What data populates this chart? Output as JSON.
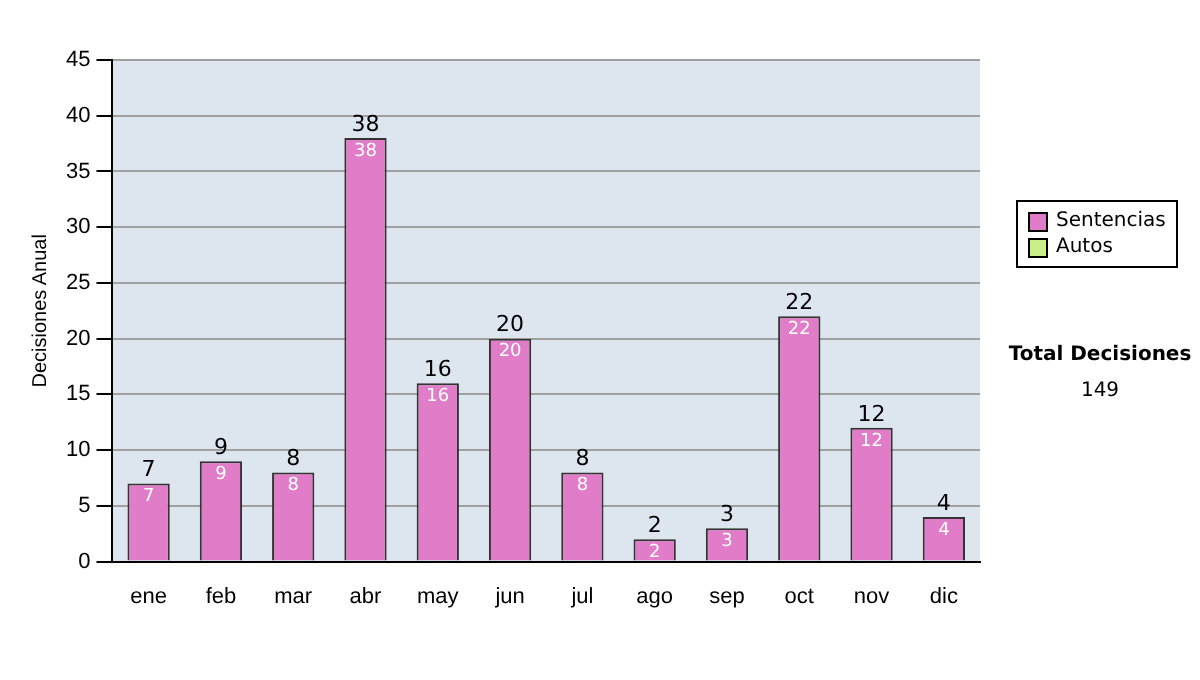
{
  "chart_data": {
    "type": "bar",
    "ylabel": "Decisiones Anual",
    "categories": [
      "ene",
      "feb",
      "mar",
      "abr",
      "may",
      "jun",
      "jul",
      "ago",
      "sep",
      "oct",
      "nov",
      "dic"
    ],
    "series": [
      {
        "name": "Sentencias",
        "color": "#e07cc8",
        "values": [
          7,
          9,
          8,
          38,
          16,
          20,
          8,
          2,
          3,
          22,
          12,
          4
        ],
        "value_labels": [
          "7",
          "9",
          "8",
          "38",
          "16",
          "20",
          "8",
          "2",
          "3",
          "22",
          "12",
          "4"
        ]
      },
      {
        "name": "Autos",
        "color": "#ccee88",
        "values": [
          0,
          0,
          0,
          0,
          0,
          0,
          0,
          0,
          0,
          0,
          0,
          0
        ]
      }
    ],
    "stacked": true,
    "totals": [
      "7",
      "9",
      "8",
      "38",
      "16",
      "20",
      "8",
      "2",
      "3",
      "22",
      "12",
      "4"
    ],
    "ylim": [
      0,
      45
    ],
    "yticks": [
      0,
      5,
      10,
      15,
      20,
      25,
      30,
      35,
      40,
      45
    ],
    "grid": "y",
    "legend": "right",
    "annotations": [
      "Total Decisiones",
      "149"
    ]
  }
}
